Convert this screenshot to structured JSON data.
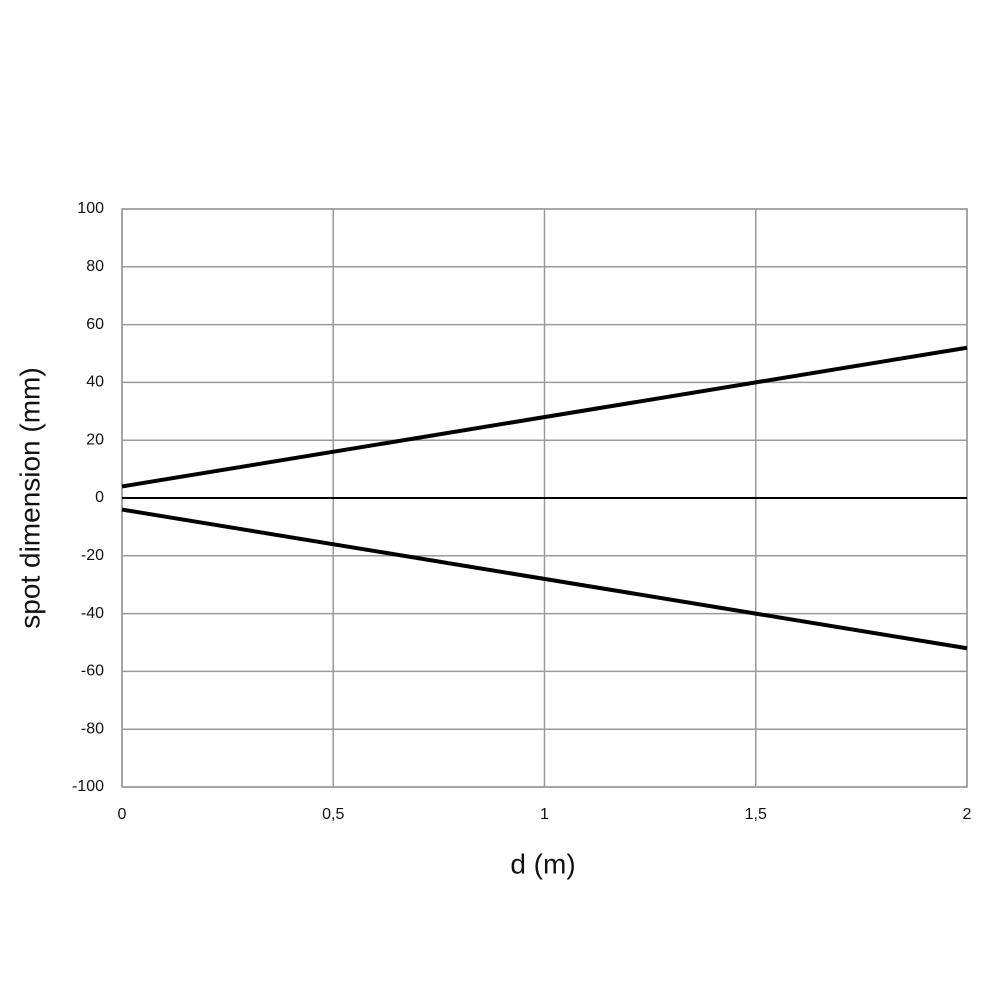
{
  "chart_data": {
    "type": "line",
    "x_label": "d (m)",
    "y_label": "spot dimension (mm)",
    "x": [
      0,
      2
    ],
    "series": [
      {
        "color": "#000000",
        "values": [
          4,
          52
        ]
      },
      {
        "color": "#000000",
        "values": [
          -4,
          -52
        ]
      }
    ],
    "xlim": [
      0,
      2
    ],
    "xticks": [
      0,
      {
        "value": 0.5,
        "label": "0,5"
      },
      1,
      {
        "value": 1.5,
        "label": "1,5"
      },
      2
    ],
    "ylim": [
      -100,
      100
    ],
    "yticks": [
      -100,
      -80,
      -60,
      -40,
      -20,
      0,
      20,
      40,
      60,
      80,
      100
    ],
    "grid": true
  }
}
